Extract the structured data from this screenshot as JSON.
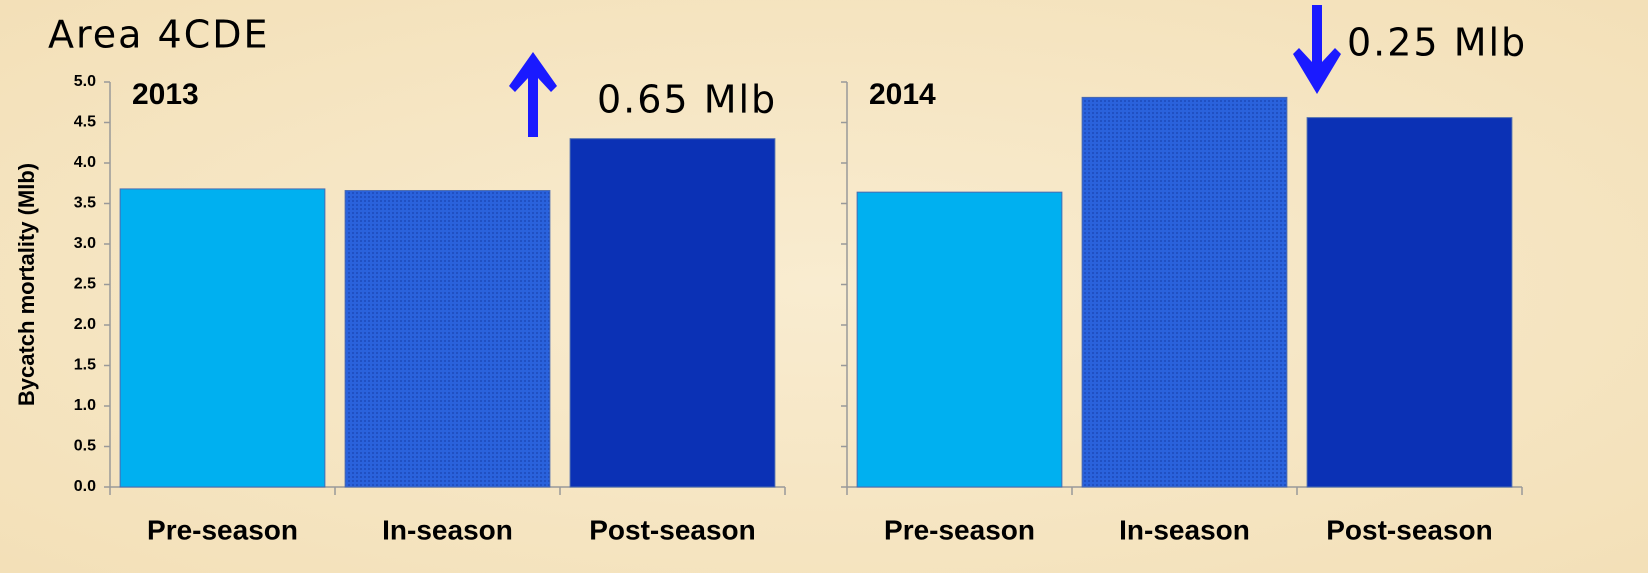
{
  "title": "Area 4CDE",
  "chart_data": [
    {
      "type": "bar",
      "title": "2013",
      "ylabel": "Bycatch mortality (Mlb)",
      "categories": [
        "Pre-season",
        "In-season",
        "Post-season"
      ],
      "values": [
        3.68,
        3.66,
        4.3
      ],
      "colors": [
        "#00b0f0",
        "#2a62dc",
        "#0b31b5"
      ],
      "ylim": [
        0,
        5
      ],
      "yticks": [
        "0.0",
        "0.5",
        "1.0",
        "1.5",
        "2.0",
        "2.5",
        "3.0",
        "3.5",
        "4.0",
        "4.5",
        "5.0"
      ],
      "tick_labels": true,
      "annotation": {
        "text": "0.65 Mlb",
        "direction": "up"
      }
    },
    {
      "type": "bar",
      "title": "2014",
      "categories": [
        "Pre-season",
        "In-season",
        "Post-season"
      ],
      "values": [
        3.64,
        4.81,
        4.56
      ],
      "colors": [
        "#00b0f0",
        "#2a62dc",
        "#0b31b5"
      ],
      "ylim": [
        0,
        5
      ],
      "yticks": [
        0,
        0.5,
        1,
        1.5,
        2,
        2.5,
        3,
        3.5,
        4,
        4.5,
        5
      ],
      "tick_labels": false,
      "annotation": {
        "text": "0.25 Mlb",
        "direction": "down"
      }
    }
  ]
}
